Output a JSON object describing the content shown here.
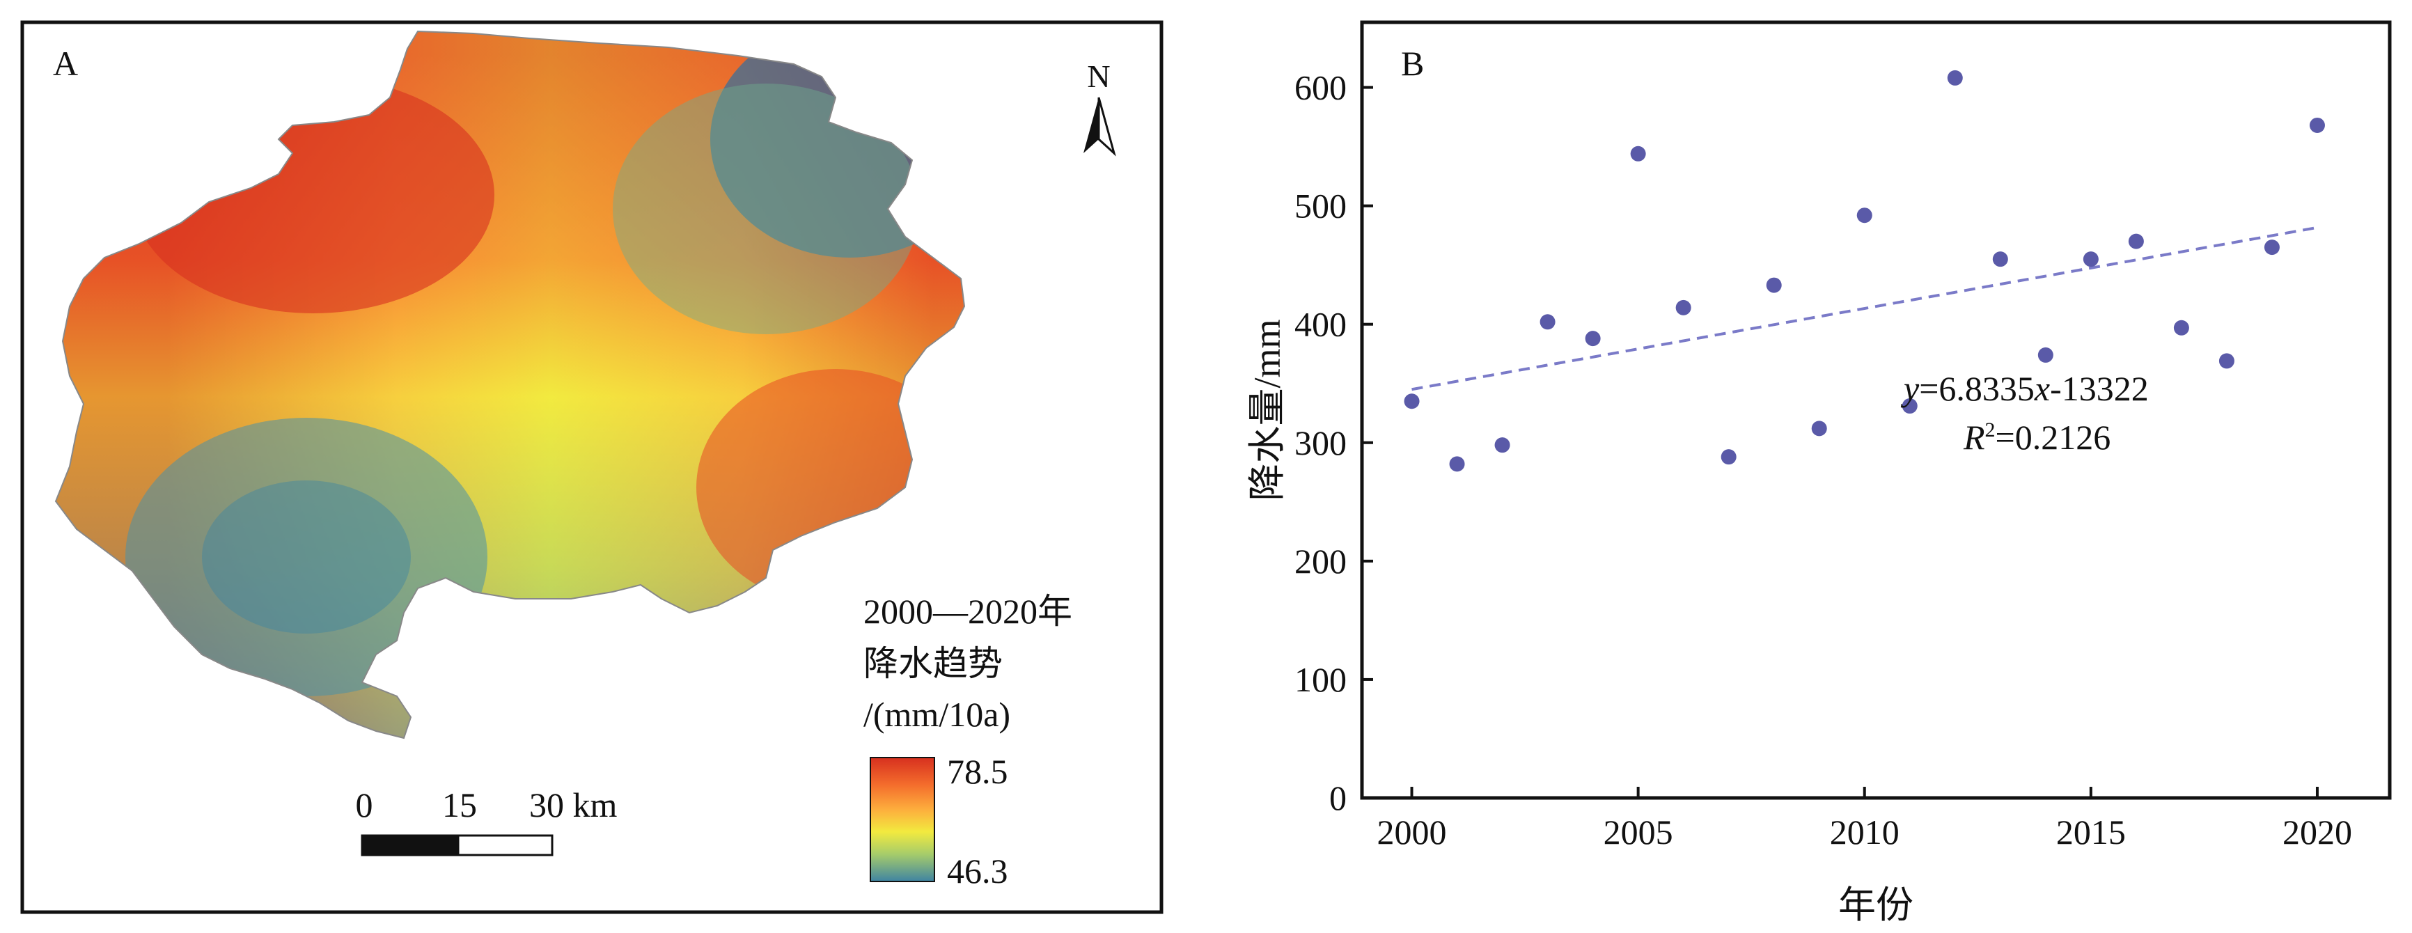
{
  "panel_a": {
    "label": "A",
    "north_label": "N",
    "legend": {
      "title_line1": "2000—2020年",
      "title_line2": "降水趋势",
      "title_line3": "/(mm/10a)",
      "max_label": "78.5",
      "min_label": "46.3",
      "max_value": 78.5,
      "min_value": 46.3,
      "colors": [
        "#d7301f",
        "#f46d2c",
        "#fdae3d",
        "#f2ea3f",
        "#a6cc6a",
        "#4a91a8",
        "#2f6f9f"
      ]
    },
    "scalebar": {
      "tick0": "0",
      "tick1": "15",
      "tick2": "30 km"
    }
  },
  "chart_data": {
    "type": "scatter",
    "panel_label": "B",
    "xlabel": "年份",
    "ylabel": "降水量/mm",
    "xlim": [
      1998.9,
      2021.6
    ],
    "ylim": [
      0,
      655
    ],
    "xticks": [
      2000,
      2005,
      2010,
      2015,
      2020
    ],
    "yticks": [
      0,
      100,
      200,
      300,
      400,
      500,
      600
    ],
    "x": [
      2000,
      2001,
      2002,
      2003,
      2004,
      2005,
      2006,
      2007,
      2008,
      2009,
      2010,
      2011,
      2012,
      2013,
      2014,
      2015,
      2016,
      2017,
      2018,
      2019,
      2020
    ],
    "y": [
      335,
      282,
      298,
      402,
      388,
      544,
      414,
      288,
      433,
      312,
      492,
      331,
      608,
      455,
      374,
      455,
      470,
      397,
      369,
      465,
      568
    ],
    "trendline": {
      "slope": 6.8335,
      "intercept": -13322,
      "x_range": [
        2000,
        2020
      ],
      "equation": {
        "y": "y",
        "eq": "=6.8335",
        "x": "x",
        "rest": "-13322"
      },
      "r2": {
        "r": "R",
        "sup": "2",
        "rest": "=0.2126"
      }
    },
    "marker_color": "#5a5aa8",
    "line_color": "#7a7ac8"
  }
}
